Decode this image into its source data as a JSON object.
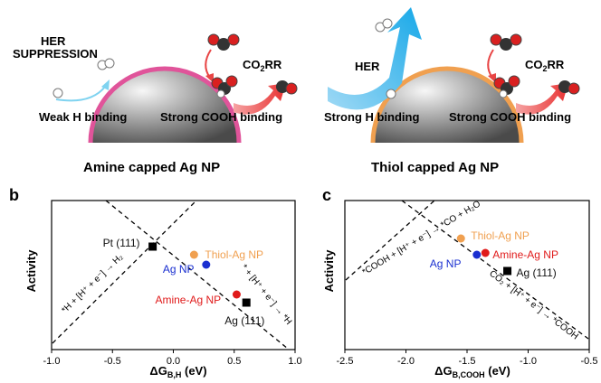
{
  "top": {
    "left": {
      "hint1": "HER",
      "hint2": "SUPPRESSION",
      "co2rr_prefix": "CO",
      "co2rr_sub": "2",
      "co2rr_suffix": "RR",
      "weak": "Weak H binding",
      "strong": "Strong COOH binding",
      "caption": "Amine capped Ag NP",
      "shell_color": "#e0549a"
    },
    "right": {
      "her": "HER",
      "co2rr_prefix": "CO",
      "co2rr_sub": "2",
      "co2rr_suffix": "RR",
      "strongH": "Strong H binding",
      "strongCOOH": "Strong COOH binding",
      "caption": "Thiol capped Ag NP",
      "shell_color": "#f0a050"
    }
  },
  "chart_data": [
    {
      "panel": "b",
      "type": "scatter",
      "xlabel_main": "ΔG",
      "xlabel_sub": "B,H",
      "xlabel_unit": " (eV)",
      "ylabel": "Activity",
      "xlim": [
        -1.0,
        1.0
      ],
      "xticks": [
        "-1.0",
        "-0.5",
        "0.0",
        "0.5",
        "1.0"
      ],
      "points": [
        {
          "label": "Pt (111)",
          "x": -0.17,
          "color": "#000000",
          "marker": "square"
        },
        {
          "label": "Thiol-Ag NP",
          "x": 0.17,
          "color": "#f0a050",
          "marker": "circle"
        },
        {
          "label": "Ag NP",
          "x": 0.27,
          "color": "#1a2fd0",
          "marker": "circle"
        },
        {
          "label": "Amine-Ag NP",
          "x": 0.52,
          "color": "#e01a1a",
          "marker": "circle"
        },
        {
          "label": "Ag (111)",
          "x": 0.6,
          "color": "#000000",
          "marker": "square"
        }
      ],
      "line_left": "*H + [H⁺ + e⁻] → H₂",
      "line_right": "* + [H⁺ + e⁻] → *H"
    },
    {
      "panel": "c",
      "type": "scatter",
      "xlabel_main": "ΔG",
      "xlabel_sub": "B,COOH",
      "xlabel_unit": " (eV)",
      "ylabel": "Activity",
      "xlim": [
        -2.5,
        -0.5
      ],
      "xticks": [
        "-2.5",
        "-2.0",
        "-1.5",
        "-1.0",
        "-0.5"
      ],
      "points": [
        {
          "label": "Thiol-Ag NP",
          "x": -1.55,
          "color": "#f0a050",
          "marker": "circle"
        },
        {
          "label": "Amine-Ag NP",
          "x": -1.35,
          "color": "#e01a1a",
          "marker": "circle"
        },
        {
          "label": "Ag NP",
          "x": -1.42,
          "color": "#1a2fd0",
          "marker": "circle"
        },
        {
          "label": "Ag (111)",
          "x": -1.17,
          "color": "#000000",
          "marker": "square"
        }
      ],
      "line_left": "*COOH + [H⁺ + e⁻] → *CO + H₂O",
      "line_right": "CO₂ + [H⁺ + e⁻] → *COOH"
    }
  ],
  "panel_letters": {
    "b": "b",
    "c": "c"
  }
}
